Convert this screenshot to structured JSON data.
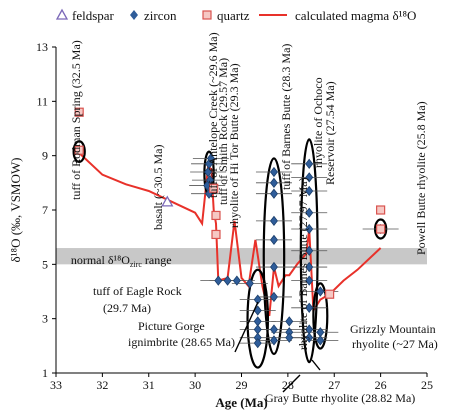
{
  "chart_data": {
    "type": "scatter",
    "xlabel": "Age (Ma)",
    "ylabel": "δ¹⁸O (‰, VSMOW)",
    "xlim": [
      33,
      25
    ],
    "ylim": [
      1,
      13
    ],
    "x_reversed": true,
    "x_ticks": [
      "33",
      "32",
      "31",
      "30",
      "29",
      "28",
      "27",
      "26",
      "25"
    ],
    "y_ticks": [
      "1",
      "3",
      "5",
      "7",
      "9",
      "11",
      "13"
    ],
    "grid": false,
    "legend_position": "top",
    "legend": [
      {
        "name": "feldspar",
        "marker": "triangle-open",
        "color": "#7b68b8"
      },
      {
        "name": "zircon",
        "marker": "diamond",
        "color": "#2f5d9a"
      },
      {
        "name": "quartz",
        "marker": "square-open",
        "color": "#d9534f"
      },
      {
        "name": "calculated magma δ¹⁸O",
        "marker": "line",
        "color": "#e8312a"
      }
    ],
    "normal_range": {
      "label": "normal δ¹⁸O",
      "subscript": "zirc",
      "label_end": " range",
      "y": [
        5.0,
        5.6
      ],
      "color": "#c8c8c8"
    },
    "series": [
      {
        "name": "feldspar",
        "points": [
          [
            30.6,
            7.3
          ]
        ]
      },
      {
        "name": "zircon",
        "points": [
          [
            29.7,
            8.7
          ],
          [
            29.72,
            8.4
          ],
          [
            29.68,
            8.1
          ],
          [
            29.74,
            7.9
          ],
          [
            29.7,
            7.6
          ],
          [
            29.66,
            8.9
          ],
          [
            29.5,
            4.4
          ],
          [
            29.3,
            4.4
          ],
          [
            29.1,
            4.4
          ],
          [
            28.82,
            4.3
          ],
          [
            28.65,
            3.7
          ],
          [
            28.65,
            3.3
          ],
          [
            28.65,
            2.9
          ],
          [
            28.65,
            2.6
          ],
          [
            28.65,
            2.3
          ],
          [
            28.65,
            2.1
          ],
          [
            28.3,
            8.4
          ],
          [
            28.3,
            8.0
          ],
          [
            28.3,
            7.6
          ],
          [
            28.3,
            6.6
          ],
          [
            28.3,
            5.9
          ],
          [
            28.3,
            4.9
          ],
          [
            28.3,
            3.8
          ],
          [
            28.3,
            2.6
          ],
          [
            28.3,
            2.2
          ],
          [
            27.97,
            2.9
          ],
          [
            27.97,
            2.5
          ],
          [
            27.97,
            2.3
          ],
          [
            27.54,
            8.7
          ],
          [
            27.54,
            8.2
          ],
          [
            27.54,
            7.7
          ],
          [
            27.54,
            6.9
          ],
          [
            27.54,
            6.3
          ],
          [
            27.54,
            5.5
          ],
          [
            27.54,
            4.9
          ],
          [
            27.54,
            4.4
          ],
          [
            27.54,
            3.4
          ],
          [
            27.54,
            2.6
          ],
          [
            27.54,
            2.3
          ],
          [
            27.3,
            4.0
          ],
          [
            27.3,
            2.5
          ],
          [
            27.3,
            2.2
          ],
          [
            26.0,
            6.3
          ]
        ]
      },
      {
        "name": "quartz",
        "points": [
          [
            32.5,
            10.6
          ],
          [
            32.5,
            9.2
          ],
          [
            29.6,
            7.8
          ],
          [
            29.55,
            6.8
          ],
          [
            29.55,
            6.1
          ],
          [
            26.0,
            7.0
          ],
          [
            26.0,
            6.3
          ],
          [
            27.1,
            3.9
          ]
        ]
      },
      {
        "name": "calculated magma δ¹⁸O",
        "points": [
          [
            32.5,
            9.1
          ],
          [
            32.0,
            8.3
          ],
          [
            31.5,
            7.95
          ],
          [
            31.0,
            7.7
          ],
          [
            30.5,
            7.3
          ],
          [
            30.0,
            6.9
          ],
          [
            29.85,
            6.5
          ],
          [
            29.72,
            8.6
          ],
          [
            29.65,
            8.5
          ],
          [
            29.6,
            7.0
          ],
          [
            29.55,
            6.5
          ],
          [
            29.5,
            4.4
          ],
          [
            29.3,
            4.5
          ],
          [
            29.15,
            6.6
          ],
          [
            29.0,
            4.5
          ],
          [
            28.85,
            4.2
          ],
          [
            28.7,
            5.9
          ],
          [
            28.55,
            4.2
          ],
          [
            28.4,
            3.1
          ],
          [
            28.3,
            4.9
          ],
          [
            28.2,
            4.2
          ],
          [
            28.05,
            4.6
          ],
          [
            27.97,
            4.6
          ],
          [
            27.8,
            5.0
          ],
          [
            27.6,
            5.4
          ],
          [
            27.54,
            6.3
          ],
          [
            27.45,
            3.3
          ],
          [
            27.3,
            3.7
          ],
          [
            27.1,
            3.9
          ],
          [
            26.8,
            4.4
          ],
          [
            26.5,
            4.8
          ],
          [
            26.0,
            5.6
          ]
        ]
      }
    ],
    "annotations": [
      {
        "text": "tuff of Rodman Spring (32.5 Ma)",
        "rotate": true
      },
      {
        "text": "basalt (~30.5 Ma)",
        "rotate": true
      },
      {
        "text": "tuff of Antelope Creek (~29.6 Ma)",
        "rotate": true
      },
      {
        "text": "tuff of Smith Rock (29.57 Ma)",
        "rotate": true
      },
      {
        "text": "rhyolite of Hi Tor Butte (29.3 Ma)",
        "rotate": true
      },
      {
        "text": "tuff of Barnes Butte (28.3 Ma)",
        "rotate": true
      },
      {
        "text": "rhyolite of Barnes Butte (27.97 Ma)",
        "rotate": true
      },
      {
        "text": "rhyolite of Ochoco",
        "rotate": true
      },
      {
        "text": "Reservoir (27.54 Ma)",
        "rotate": true
      },
      {
        "text": "Powell Butte rhyolite (25.8 Ma)",
        "rotate": true
      },
      {
        "text": "tuff of Eagle Rock",
        "rotate": false
      },
      {
        "text": "(29.7 Ma)",
        "rotate": false
      },
      {
        "text": "Picture Gorge",
        "rotate": false
      },
      {
        "text": "ignimbrite (28.65 Ma)",
        "rotate": false
      },
      {
        "text": "Grizzly Mountain",
        "rotate": false
      },
      {
        "text": "rhyolite (~27 Ma)",
        "rotate": false
      },
      {
        "text": "Gray Butte rhyolite (28.82 Ma)",
        "rotate": false
      }
    ]
  }
}
